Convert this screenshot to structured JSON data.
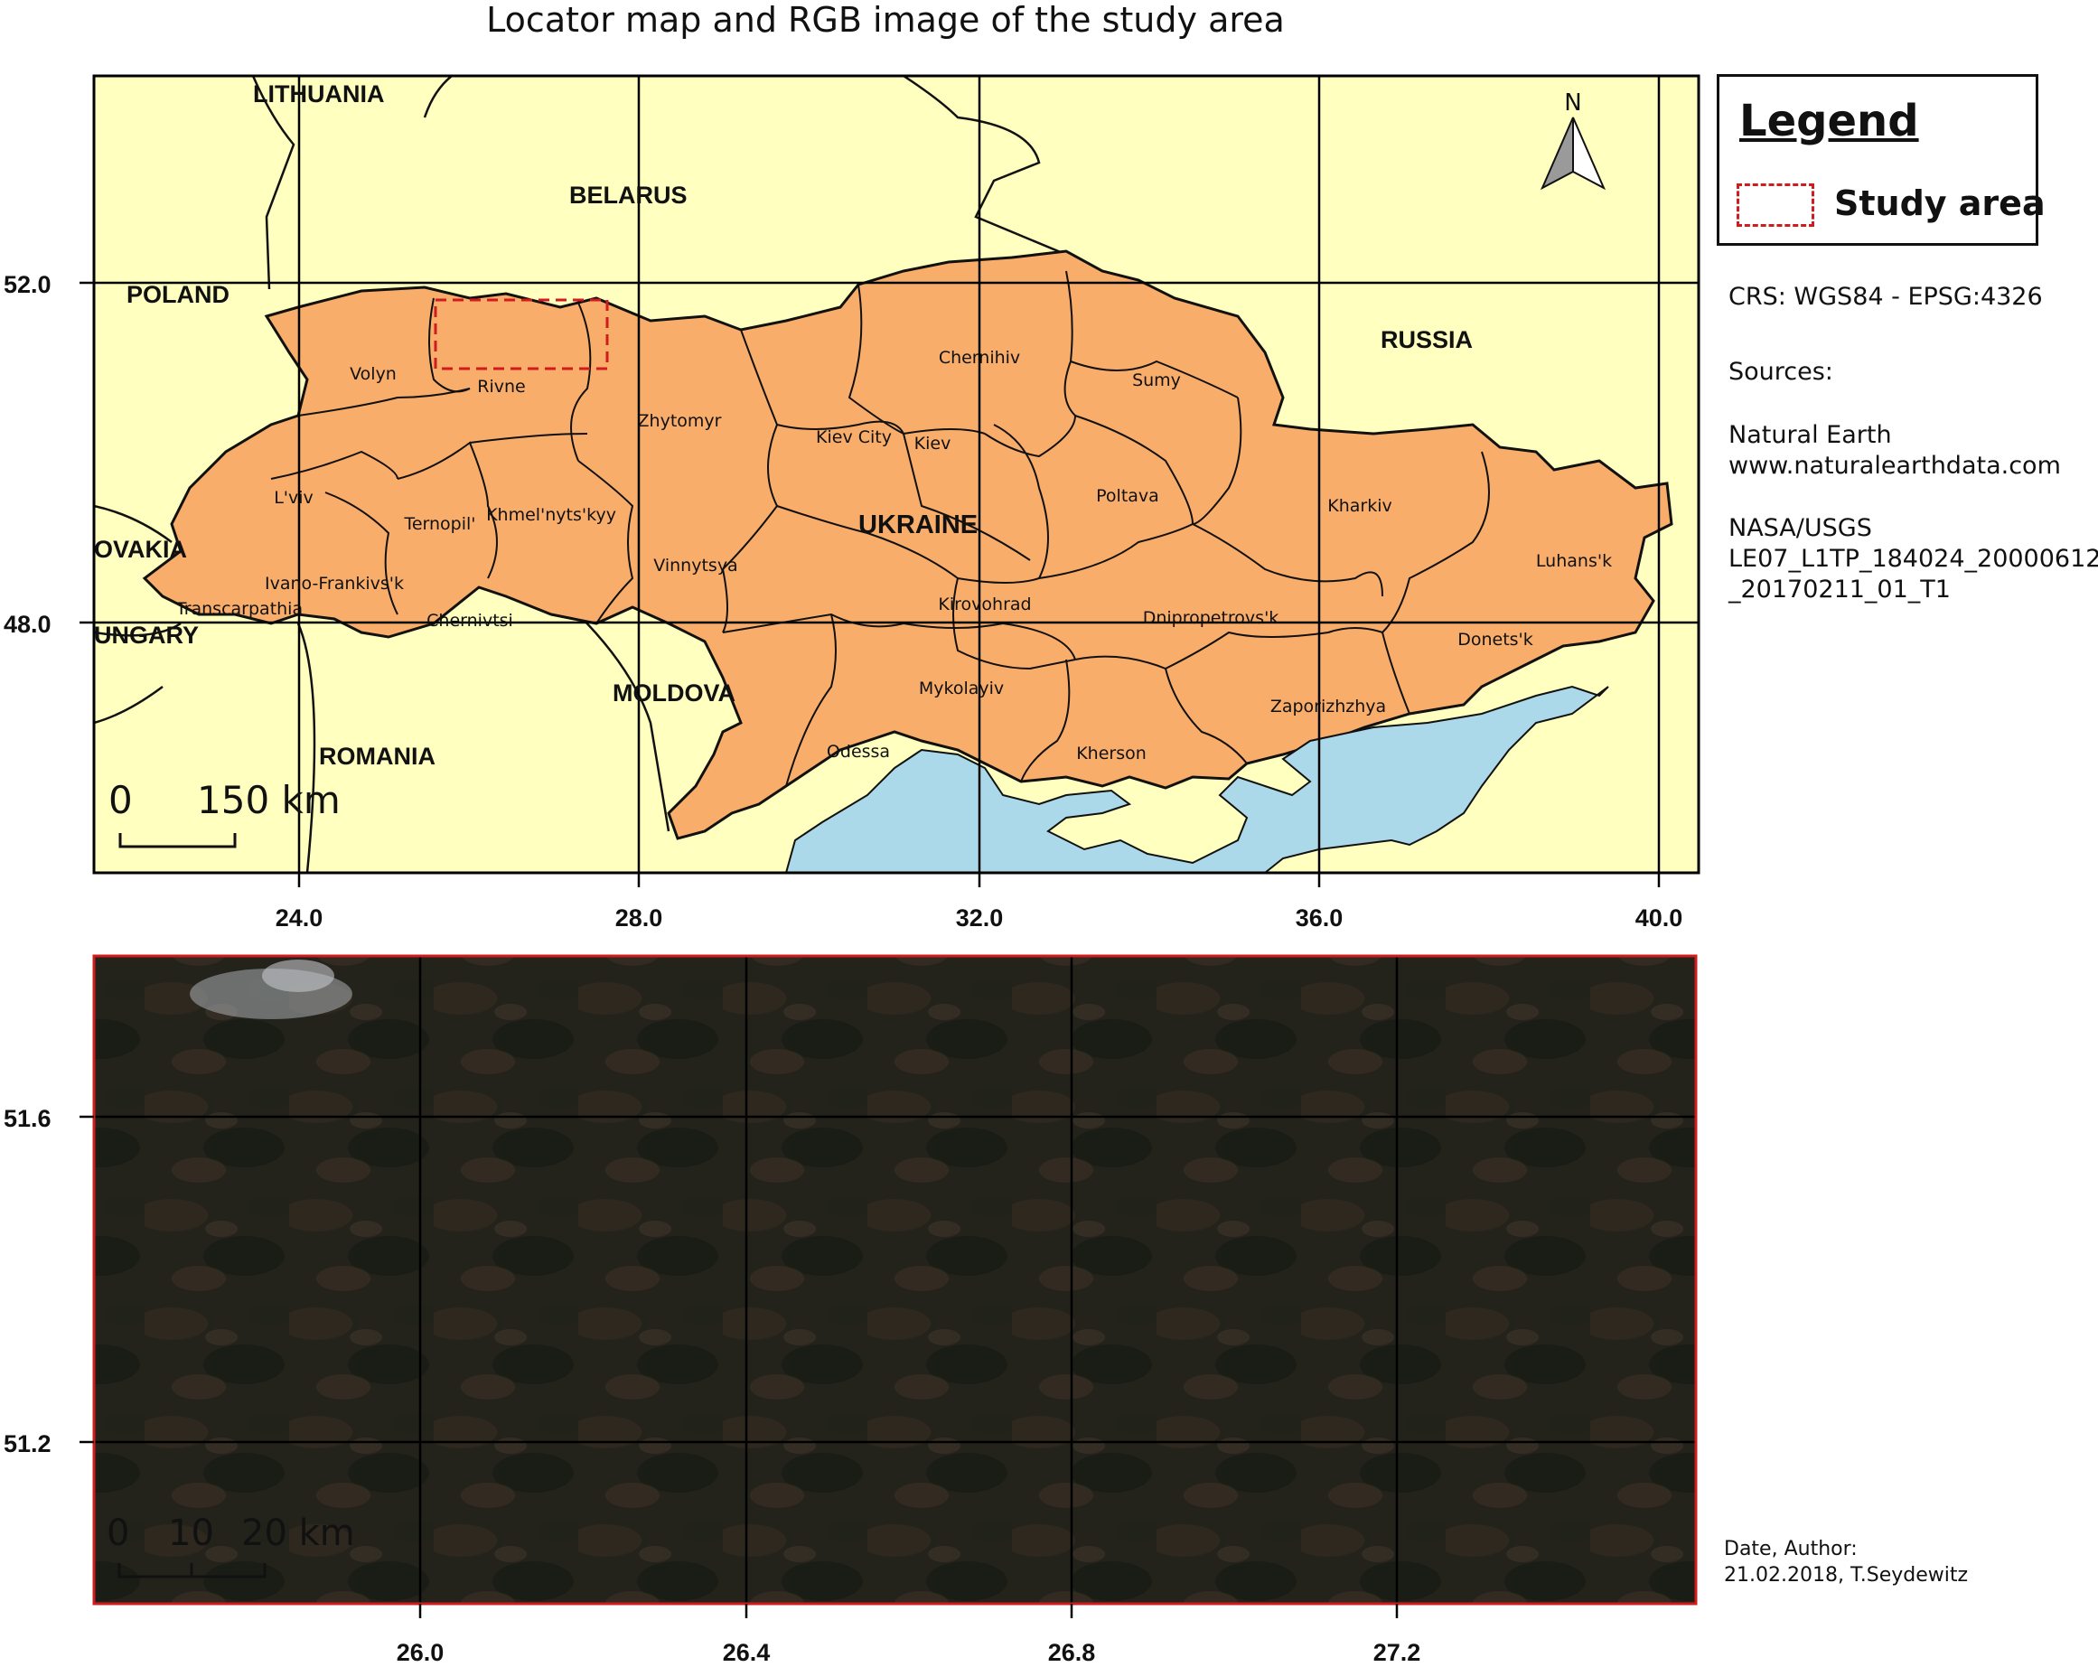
{
  "title": "Locator map and RGB image of the study area",
  "colors": {
    "background": "#ffffe0",
    "land": "#ffffc0",
    "ukraine": "#f9ad6a",
    "sea": "#acd9ea",
    "grid": "#000000",
    "study_area": "#d01c1c"
  },
  "locator_map": {
    "longitude_ticks": [
      "24.0",
      "28.0",
      "32.0",
      "36.0",
      "40.0"
    ],
    "latitude_ticks": [
      "52.0",
      "48.0"
    ],
    "countries": [
      "LITHUANIA",
      "BELARUS",
      "POLAND",
      "RUSSIA",
      "UKRAINE",
      "SLOVAKIA",
      "HUNGARY",
      "MOLDOVA",
      "ROMANIA"
    ],
    "country_labels_shown": [
      "LITHUANIA",
      "BELARUS",
      "POLAND",
      "RUSSIA",
      "UKRAINE",
      "OVAKIA",
      "UNGARY",
      "MOLDOVA",
      "ROMANIA"
    ],
    "regions": [
      "Volyn",
      "Rivne",
      "Zhytomyr",
      "Chernihiv",
      "Sumy",
      "Kiev City",
      "Kiev",
      "L'viv",
      "Ternopil'",
      "Khmel'nyts'kyy",
      "Vinnytsya",
      "Poltava",
      "Kharkiv",
      "Luhans'k",
      "Ivano-Frankivs'k",
      "Transcarpathia",
      "Chernivtsi",
      "Kirovohrad",
      "Dnipropetrovs'k",
      "Donets'k",
      "Mykolayiv",
      "Odessa",
      "Kherson",
      "Zaporizhzhya"
    ],
    "north_arrow": "N",
    "scale_bar": {
      "start": "0",
      "end": "150 km"
    }
  },
  "rgb_image": {
    "longitude_ticks": [
      "26.0",
      "26.4",
      "26.8",
      "27.2"
    ],
    "latitude_ticks": [
      "51.6",
      "51.2"
    ],
    "scale_bar": {
      "start": "0",
      "mid": "10",
      "end": "20 km"
    }
  },
  "legend": {
    "title": "Legend",
    "item": "Study area"
  },
  "crs": "CRS: WGS84 - EPSG:4326",
  "sources_label": "Sources:",
  "source_1": "Natural Earth\nwww.naturalearthdata.com",
  "source_2": "NASA/USGS\nLE07_L1TP_184024_20000612\n_20170211_01_T1",
  "date_author": "Date, Author:\n21.02.2018, T.Seydewitz"
}
